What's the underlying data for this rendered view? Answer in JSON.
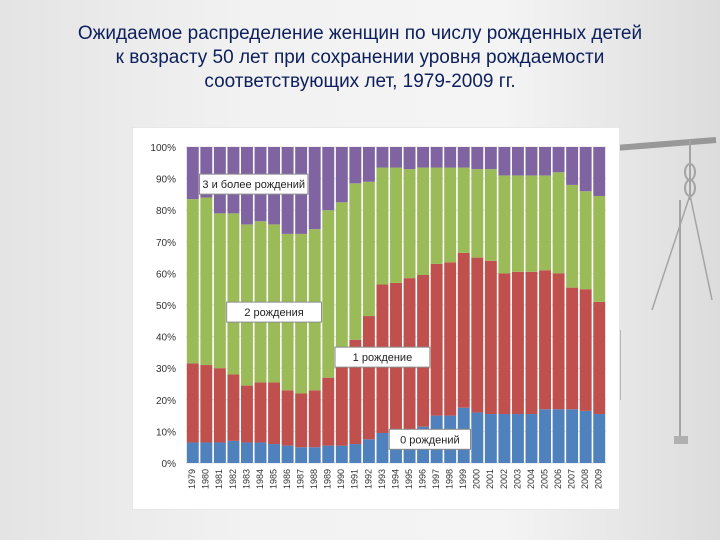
{
  "title_lines": [
    "Ожидаемое распределение женщин по числу рожденных детей",
    "к возрасту 50 лет при сохранении уровня рождаемости",
    "соответствующих лет, 1979-2009 гг."
  ],
  "colors": {
    "zero": "#4f81bd",
    "one": "#c0504d",
    "two": "#9bbb59",
    "three": "#8064a2",
    "title": "#0d1f5c"
  },
  "chart_data": {
    "type": "bar",
    "stacked": true,
    "percent": true,
    "categories": [
      "1979",
      "1980",
      "1981",
      "1982",
      "1983",
      "1984",
      "1985",
      "1986",
      "1987",
      "1988",
      "1989",
      "1990",
      "1991",
      "1992",
      "1993",
      "1994",
      "1995",
      "1996",
      "1997",
      "1998",
      "1999",
      "2000",
      "2001",
      "2002",
      "2003",
      "2004",
      "2005",
      "2006",
      "2007",
      "2008",
      "2009"
    ],
    "ylim": [
      0,
      100
    ],
    "yticks": [
      "0%",
      "10%",
      "20%",
      "30%",
      "40%",
      "50%",
      "60%",
      "70%",
      "80%",
      "90%",
      "100%"
    ],
    "series": [
      {
        "name": "0 рождений",
        "key": "zero",
        "values": [
          6.5,
          6.5,
          6.5,
          7,
          6.5,
          6.5,
          6,
          5.5,
          5,
          5,
          5.5,
          5.5,
          6,
          7.5,
          9.5,
          10,
          10,
          11.5,
          15,
          15,
          17.5,
          16,
          15.5,
          15.5,
          15.5,
          15.5,
          17,
          17,
          17,
          16.5,
          15.5
        ]
      },
      {
        "name": "1 рождение",
        "key": "one",
        "values": [
          25,
          24.5,
          23.5,
          21,
          18,
          19,
          19.5,
          17.5,
          17,
          18,
          21.5,
          26.5,
          33,
          39,
          47,
          47,
          48.5,
          48,
          48,
          48.5,
          49,
          49,
          48.5,
          44.5,
          45,
          45,
          44,
          43,
          38.5,
          38.5,
          35.5
        ]
      },
      {
        "name": "2 рождения",
        "key": "two",
        "values": [
          52,
          53,
          49,
          51,
          51,
          51,
          50,
          49.5,
          50.5,
          51,
          53,
          50.5,
          49.5,
          42.5,
          37,
          36.5,
          34.5,
          34,
          30.5,
          30,
          27,
          28,
          29,
          31,
          30.5,
          30.5,
          30,
          32,
          32.5,
          31,
          33.5
        ]
      },
      {
        "name": "3 и более рождений",
        "key": "three",
        "values": [
          16.5,
          16,
          21,
          21,
          24.5,
          23.5,
          24.5,
          27.5,
          27.5,
          26,
          20,
          17.5,
          11.5,
          11,
          6.5,
          6.5,
          7,
          6.5,
          6.5,
          6.5,
          6.5,
          7,
          7,
          9,
          9,
          9,
          9,
          8,
          12,
          14,
          15.5
        ]
      }
    ],
    "annotations": [
      {
        "text": "3 и более рождений",
        "series": "three"
      },
      {
        "text": "2 рождения",
        "series": "two"
      },
      {
        "text": "1 рождение",
        "series": "one"
      },
      {
        "text": "0 рождений",
        "series": "zero"
      }
    ]
  }
}
